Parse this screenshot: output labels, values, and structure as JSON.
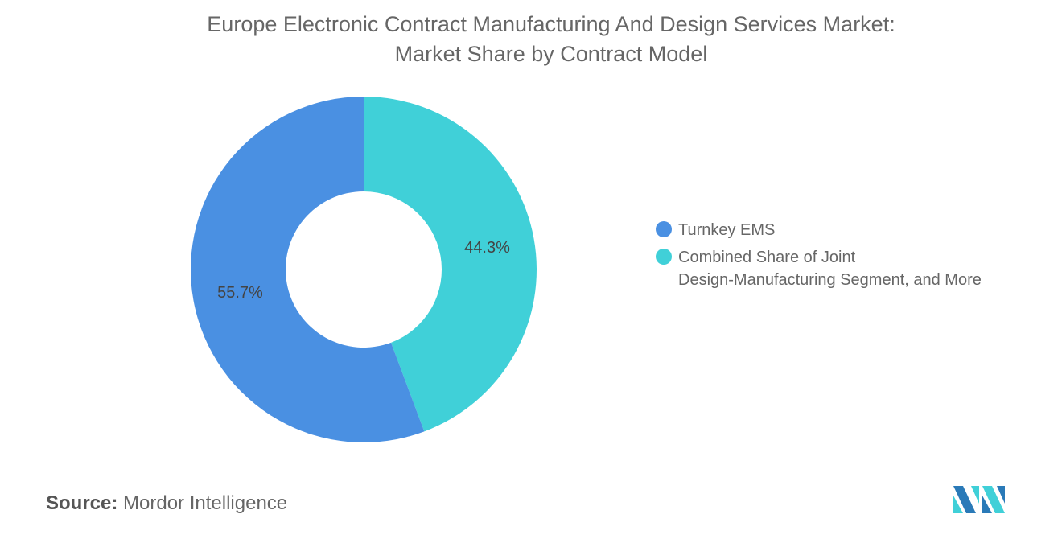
{
  "chart_data": {
    "type": "pie",
    "donut": true,
    "title": "Europe Electronic Contract Manufacturing And Design Services Market:",
    "subtitle": "Market Share by Contract Model",
    "categories": [
      "Turnkey EMS",
      "Combined Share of Joint Design-Manufacturing Segment, and More"
    ],
    "values": [
      55.7,
      44.3
    ],
    "data_labels": [
      "55.7%",
      "44.3%"
    ],
    "colors": [
      "#4a90e2",
      "#40d0d8"
    ],
    "legend_placement": "right",
    "legend": [
      {
        "line1": "Turnkey EMS",
        "line2": ""
      },
      {
        "line1": "Combined Share of Joint",
        "line2": "Design-Manufacturing Segment, and More"
      }
    ]
  },
  "source": {
    "label": "Source:",
    "value": "Mordor Intelligence"
  },
  "logo": {
    "icon": "mordor-intelligence-logo",
    "colors": [
      "#2a7ab8",
      "#40d0d8"
    ]
  }
}
